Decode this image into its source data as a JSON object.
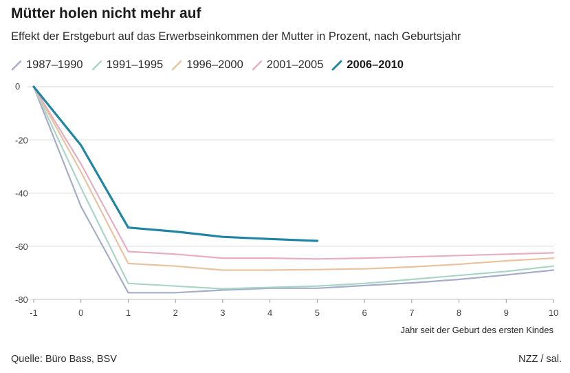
{
  "header": {
    "title": "Mütter holen nicht mehr auf",
    "subtitle": "Effekt der Erstgeburt auf das Erwerbseinkommen der Mutter in Prozent, nach Geburtsjahr"
  },
  "footer": {
    "source": "Quelle: Büro Bass, BSV",
    "credit": "NZZ / sal."
  },
  "chart_data": {
    "type": "line",
    "title": "Mütter holen nicht mehr auf",
    "xlabel": "Jahr seit der Geburt des ersten Kindes",
    "ylabel": "",
    "xlim": [
      -1,
      10
    ],
    "ylim": [
      -80,
      0
    ],
    "x_ticks": [
      "-1",
      "0",
      "1",
      "2",
      "3",
      "4",
      "5",
      "6",
      "7",
      "8",
      "9",
      "10"
    ],
    "y_ticks": [
      "0",
      "-20",
      "-40",
      "-60",
      "-80"
    ],
    "grid": true,
    "legend_position": "top-left",
    "series": [
      {
        "name": "1987–1990",
        "color": "#a5adc9",
        "highlight": false,
        "x": [
          -1,
          0,
          1,
          2,
          3,
          4,
          5,
          6,
          7,
          8,
          9,
          10
        ],
        "values": [
          0,
          -45,
          -77.5,
          -77.5,
          -76.5,
          -75.8,
          -75.8,
          -74.8,
          -73.8,
          -72.5,
          -70.8,
          -69
        ]
      },
      {
        "name": "1991–1995",
        "color": "#a9d5c7",
        "highlight": false,
        "x": [
          -1,
          0,
          1,
          2,
          3,
          4,
          5,
          6,
          7,
          8,
          9,
          10
        ],
        "values": [
          0,
          -38,
          -74,
          -75,
          -76,
          -75.5,
          -75,
          -74,
          -72.5,
          -71,
          -69.5,
          -67.5
        ]
      },
      {
        "name": "1996–2000",
        "color": "#e9c3a0",
        "highlight": false,
        "x": [
          -1,
          0,
          1,
          2,
          3,
          4,
          5,
          6,
          7,
          8,
          9,
          10
        ],
        "values": [
          0,
          -32,
          -66.5,
          -67.5,
          -69,
          -69,
          -68.8,
          -68.5,
          -67.8,
          -66.8,
          -65.5,
          -64.5
        ]
      },
      {
        "name": "2001–2005",
        "color": "#e6aebe",
        "highlight": false,
        "x": [
          -1,
          0,
          1,
          2,
          3,
          4,
          5,
          6,
          7,
          8,
          9,
          10
        ],
        "values": [
          0,
          -29,
          -62,
          -63,
          -64.5,
          -64.5,
          -64.8,
          -64.5,
          -64,
          -63.5,
          -63,
          -62.5
        ]
      },
      {
        "name": "2006–2010",
        "color": "#1f85a3",
        "highlight": true,
        "x": [
          -1,
          0,
          1,
          2,
          3,
          4,
          5
        ],
        "values": [
          0,
          -22,
          -53,
          -54.5,
          -56.5,
          -57.3,
          -58
        ]
      }
    ]
  }
}
